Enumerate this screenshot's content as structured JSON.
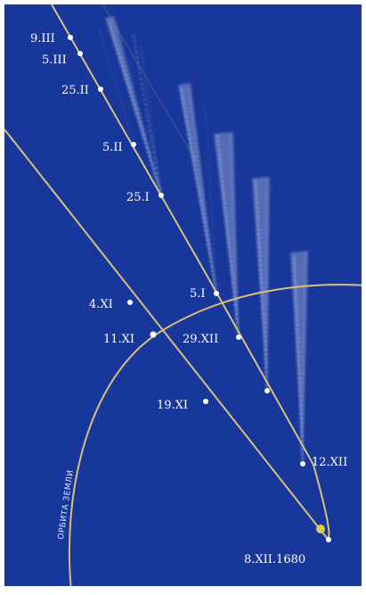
{
  "diagram": {
    "colors": {
      "background": "#17379a",
      "frame": "#ffffff",
      "orbit_line": "#d8bf7e",
      "comet_dot": "#ffffff",
      "tail": "#e8eefc",
      "sun": "#d6cf4d",
      "label": "#ffffff"
    },
    "earth_orbit_label": "ОРБИТА ЗЕМЛИ",
    "positions": [
      {
        "date": "9.III"
      },
      {
        "date": "5.III"
      },
      {
        "date": "25.II"
      },
      {
        "date": "5.II"
      },
      {
        "date": "25.I"
      },
      {
        "date": "5.I"
      },
      {
        "date": "29.XII"
      },
      {
        "date": "12.XII"
      },
      {
        "date": "8.XII.1680"
      },
      {
        "date": "19.XI"
      },
      {
        "date": "11.XI"
      },
      {
        "date": "4.XI"
      }
    ]
  }
}
